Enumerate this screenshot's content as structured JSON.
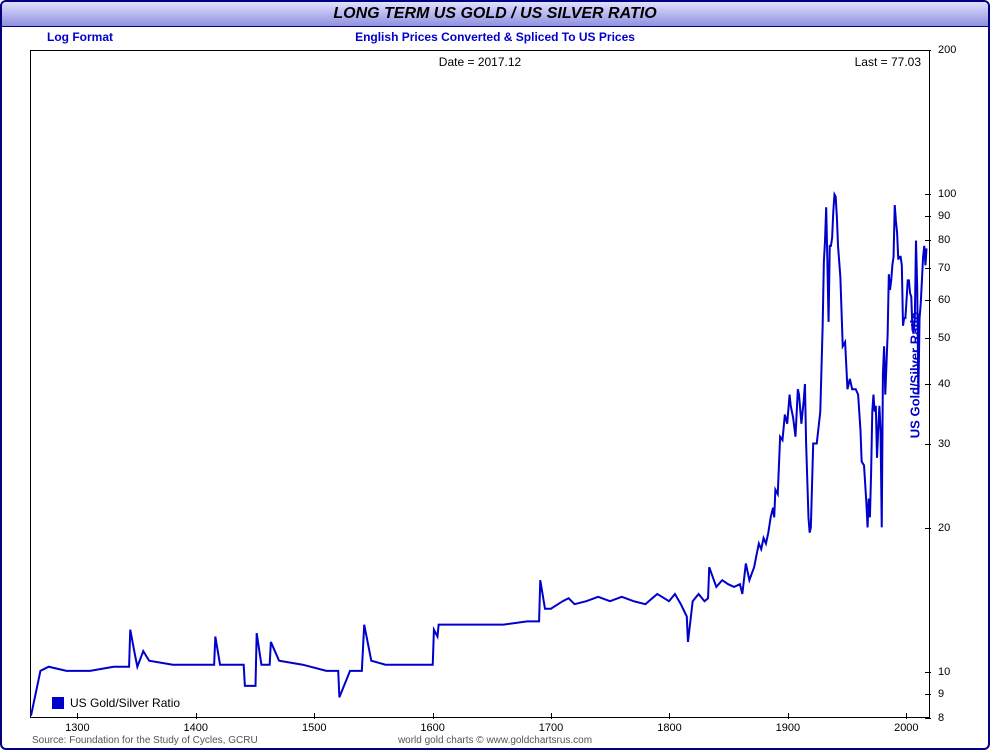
{
  "chart": {
    "type": "line",
    "scale": "log",
    "title": "LONG TERM US GOLD / US SILVER RATIO",
    "subtitle_left": "Log Format",
    "subtitle_center": "English Prices Converted & Spliced To US Prices",
    "date_label": "Date = 2017.12",
    "last_label": "Last = 77.03",
    "legend_label": "US Gold/Silver Ratio",
    "y_axis_label": "US Gold/Silver Ratio",
    "footer_left": "Source: Foundation for the Study of Cycles, GCRU",
    "footer_center": "world gold charts © www.goldchartsrus.com",
    "line_color": "#0000cc",
    "line_width": 2,
    "border_color": "#000080",
    "background_color": "#ffffff",
    "title_gradient": [
      "#e0e0ff",
      "#b8b8f0",
      "#9090e0"
    ],
    "subtitle_color": "#0000cc",
    "tick_color": "#000000",
    "x_domain": [
      1260,
      2020
    ],
    "y_domain_log": [
      8,
      200
    ],
    "x_ticks": [
      1300,
      1400,
      1500,
      1600,
      1700,
      1800,
      1900,
      2000
    ],
    "y_ticks": [
      8,
      9,
      10,
      20,
      30,
      40,
      50,
      60,
      70,
      80,
      90,
      100,
      200
    ],
    "series": [
      {
        "x": 1260,
        "y": 8.05
      },
      {
        "x": 1268,
        "y": 10.0
      },
      {
        "x": 1275,
        "y": 10.2
      },
      {
        "x": 1290,
        "y": 10.0
      },
      {
        "x": 1310,
        "y": 10.0
      },
      {
        "x": 1330,
        "y": 10.2
      },
      {
        "x": 1343,
        "y": 10.2
      },
      {
        "x": 1344,
        "y": 12.2
      },
      {
        "x": 1348,
        "y": 10.8
      },
      {
        "x": 1350,
        "y": 10.2
      },
      {
        "x": 1355,
        "y": 11.0
      },
      {
        "x": 1360,
        "y": 10.5
      },
      {
        "x": 1380,
        "y": 10.3
      },
      {
        "x": 1400,
        "y": 10.3
      },
      {
        "x": 1415,
        "y": 10.3
      },
      {
        "x": 1416,
        "y": 11.8
      },
      {
        "x": 1420,
        "y": 10.3
      },
      {
        "x": 1440,
        "y": 10.3
      },
      {
        "x": 1441,
        "y": 9.3
      },
      {
        "x": 1450,
        "y": 9.3
      },
      {
        "x": 1451,
        "y": 12.0
      },
      {
        "x": 1455,
        "y": 10.3
      },
      {
        "x": 1462,
        "y": 10.3
      },
      {
        "x": 1463,
        "y": 11.5
      },
      {
        "x": 1470,
        "y": 10.5
      },
      {
        "x": 1490,
        "y": 10.3
      },
      {
        "x": 1510,
        "y": 10.0
      },
      {
        "x": 1520,
        "y": 10.0
      },
      {
        "x": 1521,
        "y": 8.8
      },
      {
        "x": 1530,
        "y": 10.0
      },
      {
        "x": 1540,
        "y": 10.0
      },
      {
        "x": 1542,
        "y": 12.5
      },
      {
        "x": 1548,
        "y": 10.5
      },
      {
        "x": 1560,
        "y": 10.3
      },
      {
        "x": 1580,
        "y": 10.3
      },
      {
        "x": 1600,
        "y": 10.3
      },
      {
        "x": 1601,
        "y": 12.2
      },
      {
        "x": 1604,
        "y": 11.8
      },
      {
        "x": 1605,
        "y": 12.5
      },
      {
        "x": 1620,
        "y": 12.5
      },
      {
        "x": 1640,
        "y": 12.5
      },
      {
        "x": 1660,
        "y": 12.5
      },
      {
        "x": 1680,
        "y": 12.7
      },
      {
        "x": 1690,
        "y": 12.7
      },
      {
        "x": 1691,
        "y": 15.5
      },
      {
        "x": 1695,
        "y": 13.5
      },
      {
        "x": 1700,
        "y": 13.5
      },
      {
        "x": 1710,
        "y": 14.0
      },
      {
        "x": 1715,
        "y": 14.2
      },
      {
        "x": 1720,
        "y": 13.8
      },
      {
        "x": 1730,
        "y": 14.0
      },
      {
        "x": 1740,
        "y": 14.3
      },
      {
        "x": 1750,
        "y": 14.0
      },
      {
        "x": 1760,
        "y": 14.3
      },
      {
        "x": 1770,
        "y": 14.0
      },
      {
        "x": 1780,
        "y": 13.8
      },
      {
        "x": 1790,
        "y": 14.5
      },
      {
        "x": 1800,
        "y": 14.0
      },
      {
        "x": 1805,
        "y": 14.5
      },
      {
        "x": 1810,
        "y": 13.8
      },
      {
        "x": 1815,
        "y": 13.0
      },
      {
        "x": 1816,
        "y": 11.5
      },
      {
        "x": 1820,
        "y": 14.0
      },
      {
        "x": 1825,
        "y": 14.5
      },
      {
        "x": 1830,
        "y": 14.0
      },
      {
        "x": 1833,
        "y": 14.2
      },
      {
        "x": 1834,
        "y": 16.5
      },
      {
        "x": 1840,
        "y": 15.0
      },
      {
        "x": 1845,
        "y": 15.5
      },
      {
        "x": 1850,
        "y": 15.2
      },
      {
        "x": 1855,
        "y": 15.0
      },
      {
        "x": 1860,
        "y": 15.2
      },
      {
        "x": 1862,
        "y": 14.5
      },
      {
        "x": 1865,
        "y": 16.8
      },
      {
        "x": 1868,
        "y": 15.5
      },
      {
        "x": 1870,
        "y": 16.0
      },
      {
        "x": 1872,
        "y": 16.5
      },
      {
        "x": 1874,
        "y": 17.5
      },
      {
        "x": 1876,
        "y": 18.5
      },
      {
        "x": 1878,
        "y": 18.0
      },
      {
        "x": 1880,
        "y": 19.0
      },
      {
        "x": 1882,
        "y": 18.5
      },
      {
        "x": 1884,
        "y": 19.5
      },
      {
        "x": 1886,
        "y": 21.0
      },
      {
        "x": 1888,
        "y": 22.0
      },
      {
        "x": 1889,
        "y": 21.0
      },
      {
        "x": 1890,
        "y": 24.0
      },
      {
        "x": 1892,
        "y": 23.5
      },
      {
        "x": 1894,
        "y": 31.0
      },
      {
        "x": 1896,
        "y": 30.5
      },
      {
        "x": 1898,
        "y": 34.5
      },
      {
        "x": 1900,
        "y": 33.0
      },
      {
        "x": 1902,
        "y": 38.0
      },
      {
        "x": 1903,
        "y": 36.0
      },
      {
        "x": 1905,
        "y": 34.0
      },
      {
        "x": 1907,
        "y": 31.0
      },
      {
        "x": 1909,
        "y": 39.0
      },
      {
        "x": 1910,
        "y": 38.0
      },
      {
        "x": 1912,
        "y": 33.0
      },
      {
        "x": 1914,
        "y": 37.0
      },
      {
        "x": 1915,
        "y": 40.0
      },
      {
        "x": 1916,
        "y": 30.0
      },
      {
        "x": 1918,
        "y": 21.0
      },
      {
        "x": 1919,
        "y": 19.5
      },
      {
        "x": 1920,
        "y": 20.0
      },
      {
        "x": 1922,
        "y": 30.0
      },
      {
        "x": 1925,
        "y": 30.0
      },
      {
        "x": 1928,
        "y": 35.0
      },
      {
        "x": 1930,
        "y": 53.0
      },
      {
        "x": 1931,
        "y": 72.0
      },
      {
        "x": 1932,
        "y": 80.0
      },
      {
        "x": 1933,
        "y": 94.0
      },
      {
        "x": 1934,
        "y": 72.0
      },
      {
        "x": 1935,
        "y": 54.0
      },
      {
        "x": 1936,
        "y": 78.0
      },
      {
        "x": 1937,
        "y": 78.0
      },
      {
        "x": 1938,
        "y": 81.0
      },
      {
        "x": 1939,
        "y": 92.0
      },
      {
        "x": 1940,
        "y": 100.0
      },
      {
        "x": 1941,
        "y": 99.0
      },
      {
        "x": 1942,
        "y": 90.0
      },
      {
        "x": 1943,
        "y": 78.0
      },
      {
        "x": 1945,
        "y": 67.0
      },
      {
        "x": 1947,
        "y": 48.0
      },
      {
        "x": 1949,
        "y": 49.0
      },
      {
        "x": 1951,
        "y": 39.0
      },
      {
        "x": 1953,
        "y": 41.0
      },
      {
        "x": 1955,
        "y": 39.0
      },
      {
        "x": 1958,
        "y": 39.0
      },
      {
        "x": 1960,
        "y": 38.0
      },
      {
        "x": 1962,
        "y": 32.0
      },
      {
        "x": 1963,
        "y": 27.5
      },
      {
        "x": 1965,
        "y": 27.0
      },
      {
        "x": 1967,
        "y": 22.5
      },
      {
        "x": 1968,
        "y": 20.0
      },
      {
        "x": 1969,
        "y": 23.0
      },
      {
        "x": 1970,
        "y": 21.0
      },
      {
        "x": 1971,
        "y": 26.0
      },
      {
        "x": 1972,
        "y": 35.0
      },
      {
        "x": 1973,
        "y": 38.0
      },
      {
        "x": 1974,
        "y": 35.0
      },
      {
        "x": 1975,
        "y": 36.0
      },
      {
        "x": 1976,
        "y": 28.0
      },
      {
        "x": 1977,
        "y": 32.0
      },
      {
        "x": 1978,
        "y": 36.0
      },
      {
        "x": 1979,
        "y": 32.0
      },
      {
        "x": 1980,
        "y": 20.0
      },
      {
        "x": 1981,
        "y": 42.0
      },
      {
        "x": 1982,
        "y": 48.0
      },
      {
        "x": 1983,
        "y": 38.0
      },
      {
        "x": 1984,
        "y": 44.0
      },
      {
        "x": 1985,
        "y": 51.0
      },
      {
        "x": 1986,
        "y": 68.0
      },
      {
        "x": 1987,
        "y": 63.0
      },
      {
        "x": 1988,
        "y": 66.0
      },
      {
        "x": 1989,
        "y": 71.0
      },
      {
        "x": 1990,
        "y": 74.0
      },
      {
        "x": 1991,
        "y": 95.0
      },
      {
        "x": 1992,
        "y": 88.0
      },
      {
        "x": 1993,
        "y": 83.0
      },
      {
        "x": 1994,
        "y": 73.0
      },
      {
        "x": 1995,
        "y": 74.0
      },
      {
        "x": 1996,
        "y": 74.0
      },
      {
        "x": 1997,
        "y": 71.0
      },
      {
        "x": 1998,
        "y": 53.0
      },
      {
        "x": 1999,
        "y": 55.0
      },
      {
        "x": 2000,
        "y": 55.0
      },
      {
        "x": 2001,
        "y": 60.0
      },
      {
        "x": 2002,
        "y": 66.0
      },
      {
        "x": 2003,
        "y": 66.0
      },
      {
        "x": 2004,
        "y": 62.0
      },
      {
        "x": 2005,
        "y": 61.0
      },
      {
        "x": 2006,
        "y": 52.0
      },
      {
        "x": 2007,
        "y": 51.0
      },
      {
        "x": 2008,
        "y": 55.0
      },
      {
        "x": 2009,
        "y": 80.0
      },
      {
        "x": 2010,
        "y": 64.0
      },
      {
        "x": 2011,
        "y": 38.0
      },
      {
        "x": 2012,
        "y": 55.0
      },
      {
        "x": 2013,
        "y": 59.0
      },
      {
        "x": 2014,
        "y": 66.0
      },
      {
        "x": 2015,
        "y": 74.0
      },
      {
        "x": 2016,
        "y": 78.0
      },
      {
        "x": 2017,
        "y": 71.0
      },
      {
        "x": 2017.9,
        "y": 77.03
      }
    ]
  }
}
